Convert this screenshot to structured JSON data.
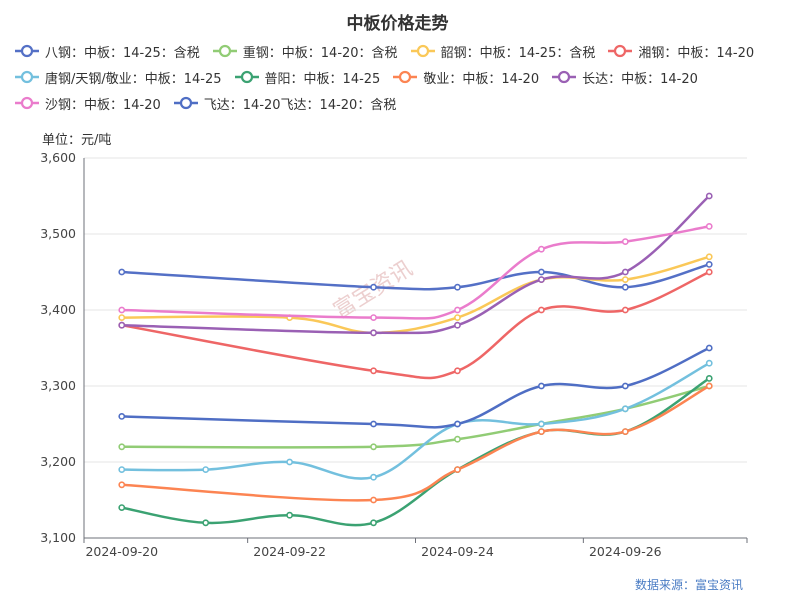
{
  "chart_data": {
    "type": "line",
    "title": "中板价格走势",
    "unit_label": "单位：元/吨",
    "source": "数据来源：富宝资讯",
    "watermark": "富宝资讯",
    "x_labels": [
      "2024-09-20",
      "2024-09-22",
      "2024-09-24",
      "2024-09-26"
    ],
    "x_label_days": [
      0,
      2,
      4,
      6
    ],
    "x_range_days": [
      -0.45,
      7.45
    ],
    "yticks": [
      3100,
      3200,
      3300,
      3400,
      3500,
      3600
    ],
    "ytick_labels": [
      "3,100",
      "3,200",
      "3,300",
      "3,400",
      "3,500",
      "3,600"
    ],
    "ylim": [
      3100,
      3600
    ],
    "grid": "horizontal",
    "legend_position": "top",
    "series": [
      {
        "name": "八钢：中板：14-25：含税",
        "color": "#5470c6",
        "points": [
          [
            0,
            3450
          ],
          [
            3,
            3430
          ],
          [
            4,
            3430
          ],
          [
            5,
            3450
          ],
          [
            6,
            3430
          ],
          [
            7,
            3460
          ]
        ]
      },
      {
        "name": "重钢：中板：14-20：含税",
        "color": "#91cc75",
        "points": [
          [
            0,
            3220
          ],
          [
            3,
            3220
          ],
          [
            4,
            3230
          ],
          [
            5,
            3250
          ],
          [
            6,
            3270
          ],
          [
            7,
            3300
          ]
        ]
      },
      {
        "name": "韶钢：中板：14-25：含税",
        "color": "#fac858",
        "points": [
          [
            0,
            3390
          ],
          [
            2,
            3390
          ],
          [
            3,
            3370
          ],
          [
            4,
            3390
          ],
          [
            5,
            3440
          ],
          [
            6,
            3440
          ],
          [
            7,
            3470
          ]
        ]
      },
      {
        "name": "湘钢：中板：14-20",
        "color": "#ee6666",
        "points": [
          [
            0,
            3380
          ],
          [
            3,
            3320
          ],
          [
            4,
            3320
          ],
          [
            5,
            3400
          ],
          [
            6,
            3400
          ],
          [
            7,
            3450
          ]
        ]
      },
      {
        "name": "唐钢/天钢/敬业：中板：14-25",
        "color": "#73c0de",
        "points": [
          [
            0,
            3190
          ],
          [
            1,
            3190
          ],
          [
            2,
            3200
          ],
          [
            3,
            3180
          ],
          [
            4,
            3250
          ],
          [
            5,
            3250
          ],
          [
            6,
            3270
          ],
          [
            7,
            3330
          ]
        ]
      },
      {
        "name": "普阳：中板：14-25",
        "color": "#3ba272",
        "points": [
          [
            0,
            3140
          ],
          [
            1,
            3120
          ],
          [
            2,
            3130
          ],
          [
            3,
            3120
          ],
          [
            4,
            3190
          ],
          [
            5,
            3240
          ],
          [
            6,
            3240
          ],
          [
            7,
            3310
          ]
        ]
      },
      {
        "name": "敬业：中板：14-20",
        "color": "#fc8452",
        "points": [
          [
            0,
            3170
          ],
          [
            3,
            3150
          ],
          [
            4,
            3190
          ],
          [
            5,
            3240
          ],
          [
            6,
            3240
          ],
          [
            7,
            3300
          ]
        ]
      },
      {
        "name": "长达：中板：14-20",
        "color": "#9a60b4",
        "points": [
          [
            0,
            3380
          ],
          [
            3,
            3370
          ],
          [
            4,
            3380
          ],
          [
            5,
            3440
          ],
          [
            6,
            3450
          ],
          [
            7,
            3550
          ]
        ]
      },
      {
        "name": "沙钢：中板：14-20",
        "color": "#ea7ccc",
        "points": [
          [
            0,
            3400
          ],
          [
            3,
            3390
          ],
          [
            4,
            3400
          ],
          [
            5,
            3480
          ],
          [
            6,
            3490
          ],
          [
            7,
            3510
          ]
        ]
      },
      {
        "name": "飞达：14-20飞达：14-20：含税",
        "color": "#4f6ec4",
        "points": [
          [
            0,
            3260
          ],
          [
            3,
            3250
          ],
          [
            4,
            3250
          ],
          [
            5,
            3300
          ],
          [
            6,
            3300
          ],
          [
            7,
            3350
          ]
        ]
      }
    ]
  }
}
